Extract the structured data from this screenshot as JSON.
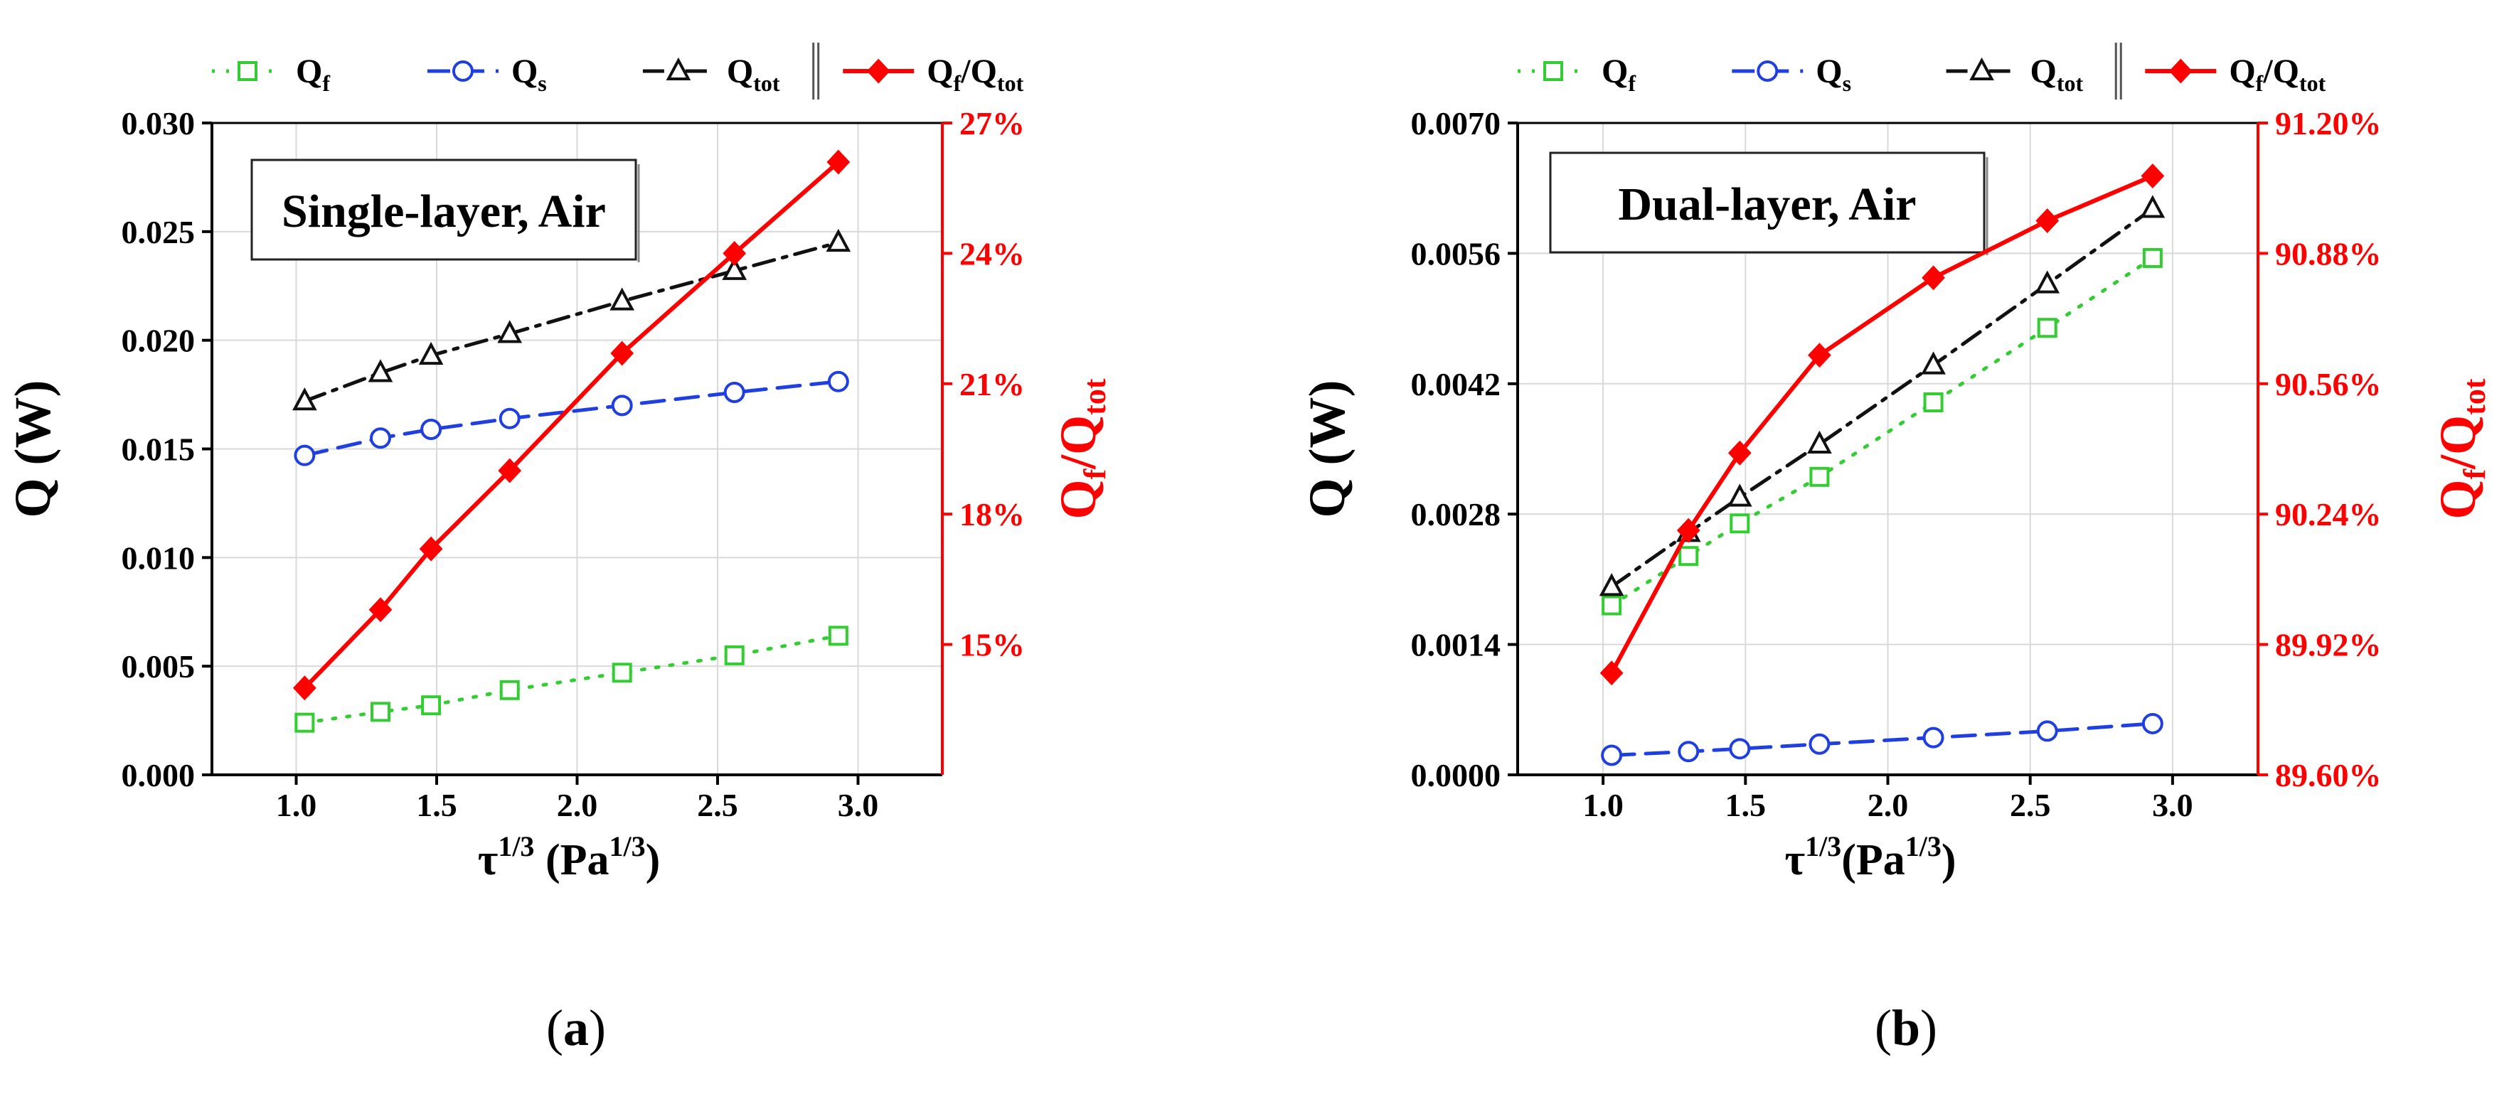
{
  "chart_data": [
    {
      "id": "a",
      "type": "line",
      "panel_label": "a",
      "annotation": "Single-layer, Air",
      "xlabel": {
        "base": "τ",
        "base_exp": "1/3",
        "unit_open": " (Pa",
        "unit_exp": "1/3",
        "unit_close": ")"
      },
      "ylabel": "Q (W)",
      "y2label": {
        "a": "Q",
        "a_sub": "f",
        "sep": "/Q",
        "b_sub": "tot"
      },
      "xlim": [
        0.7,
        3.3
      ],
      "ylim": [
        0,
        0.03
      ],
      "y2lim": [
        12,
        27
      ],
      "xticks": [
        "1.0",
        "1.5",
        "2.0",
        "2.5",
        "3.0"
      ],
      "yticks": [
        "0.000",
        "0.005",
        "0.010",
        "0.015",
        "0.020",
        "0.025",
        "0.030"
      ],
      "y2ticks": [
        "15%",
        "18%",
        "21%",
        "24%",
        "27%"
      ],
      "x": [
        1.03,
        1.3,
        1.48,
        1.76,
        2.16,
        2.56,
        2.93
      ],
      "series": [
        {
          "name": "Qf",
          "label_main": "Q",
          "label_sub": "f",
          "axis": "left",
          "color": "#33cc33",
          "marker": "square",
          "dash": "dot",
          "values": [
            0.0024,
            0.0029,
            0.0032,
            0.0039,
            0.0047,
            0.0055,
            0.0064
          ]
        },
        {
          "name": "Qs",
          "label_main": "Q",
          "label_sub": "s",
          "axis": "left",
          "color": "#1f3fe0",
          "marker": "circle",
          "dash": "dash",
          "values": [
            0.0147,
            0.0155,
            0.0159,
            0.0164,
            0.017,
            0.0176,
            0.0181
          ]
        },
        {
          "name": "Qtot",
          "label_main": "Q",
          "label_sub": "tot",
          "axis": "left",
          "color": "#111111",
          "marker": "triangle",
          "dash": "dashdot",
          "values": [
            0.0172,
            0.0185,
            0.0193,
            0.0203,
            0.0218,
            0.0232,
            0.0245
          ]
        },
        {
          "name": "Qf/Qtot",
          "label_main": "Q",
          "label_sub": "f",
          "label_sep": "/Q",
          "label_sub2": "tot",
          "axis": "right",
          "color": "#ff0000",
          "marker": "diamond",
          "dash": "solid",
          "values": [
            14.0,
            15.8,
            17.2,
            19.0,
            21.7,
            24.0,
            26.1
          ]
        }
      ]
    },
    {
      "id": "b",
      "type": "line",
      "panel_label": "b",
      "annotation": "Dual-layer, Air",
      "xlabel": {
        "base": "τ",
        "base_exp": "1/3",
        "unit_open": "(Pa",
        "unit_exp": "1/3",
        "unit_close": ")"
      },
      "ylabel": "Q (W)",
      "y2label": {
        "a": "Q",
        "a_sub": "f",
        "sep": "/Q",
        "b_sub": "tot"
      },
      "xlim": [
        0.7,
        3.3
      ],
      "ylim": [
        0,
        0.007
      ],
      "y2lim": [
        89.6,
        91.2
      ],
      "xticks": [
        "1.0",
        "1.5",
        "2.0",
        "2.5",
        "3.0"
      ],
      "yticks": [
        "0.0000",
        "0.0014",
        "0.0028",
        "0.0042",
        "0.0056",
        "0.0070"
      ],
      "y2ticks": [
        "89.60%",
        "89.92%",
        "90.24%",
        "90.56%",
        "90.88%",
        "91.20%"
      ],
      "x": [
        1.03,
        1.3,
        1.48,
        1.76,
        2.16,
        2.56,
        2.93
      ],
      "series": [
        {
          "name": "Qf",
          "label_main": "Q",
          "label_sub": "f",
          "axis": "left",
          "color": "#33cc33",
          "marker": "square",
          "dash": "dot",
          "values": [
            0.00182,
            0.00235,
            0.0027,
            0.0032,
            0.004,
            0.0048,
            0.00555
          ]
        },
        {
          "name": "Qs",
          "label_main": "Q",
          "label_sub": "s",
          "axis": "left",
          "color": "#1f3fe0",
          "marker": "circle",
          "dash": "dash",
          "values": [
            0.00021,
            0.00025,
            0.00028,
            0.00033,
            0.0004,
            0.00047,
            0.00055
          ]
        },
        {
          "name": "Qtot",
          "label_main": "Q",
          "label_sub": "tot",
          "axis": "left",
          "color": "#111111",
          "marker": "triangle",
          "dash": "dashdot",
          "values": [
            0.00202,
            0.0026,
            0.00298,
            0.00355,
            0.0044,
            0.00527,
            0.00608
          ]
        },
        {
          "name": "Qf/Qtot",
          "label_main": "Q",
          "label_sub": "f",
          "label_sep": "/Q",
          "label_sub2": "tot",
          "axis": "right",
          "color": "#ff0000",
          "marker": "diamond",
          "dash": "solid",
          "values": [
            89.85,
            90.2,
            90.39,
            90.63,
            90.82,
            90.96,
            91.07
          ]
        }
      ]
    }
  ]
}
